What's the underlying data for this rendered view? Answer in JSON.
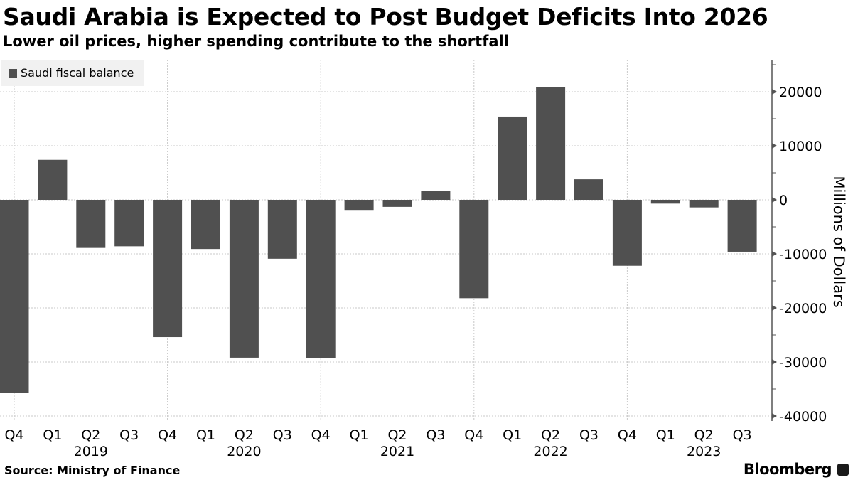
{
  "chart_data": {
    "type": "bar",
    "title": "Saudi Arabia is Expected to Post Budget Deficits Into 2026",
    "subtitle": "Lower oil prices, higher spending contribute to the shortfall",
    "xlabel": "",
    "ylabel": "Millions of Dollars",
    "ylim": [
      -40000,
      25000
    ],
    "yticks": [
      20000,
      10000,
      0,
      -10000,
      -20000,
      -30000,
      -40000
    ],
    "ytick_labels": [
      "20000",
      "10000",
      "0",
      "-10000",
      "-20000",
      "-30000",
      "-40000"
    ],
    "grid": true,
    "legend_position": "top-left",
    "categories": [
      "Q4",
      "Q1",
      "Q2",
      "Q3",
      "Q4",
      "Q1",
      "Q2",
      "Q3",
      "Q4",
      "Q1",
      "Q2",
      "Q3",
      "Q4",
      "Q1",
      "Q2",
      "Q3",
      "Q4",
      "Q1",
      "Q2",
      "Q3"
    ],
    "year_labels": [
      {
        "label": "2019",
        "index": 2
      },
      {
        "label": "2020",
        "index": 6
      },
      {
        "label": "2021",
        "index": 10
      },
      {
        "label": "2022",
        "index": 14
      },
      {
        "label": "2023",
        "index": 18
      }
    ],
    "series": [
      {
        "name": "Saudi fiscal balance",
        "color": "#505050",
        "values": [
          -35700,
          7400,
          -8900,
          -8600,
          -25400,
          -9100,
          -29200,
          -10900,
          -29300,
          -2000,
          -1300,
          1700,
          -18200,
          15400,
          20800,
          3800,
          -12200,
          -700,
          -1400,
          -9600
        ]
      }
    ]
  },
  "legend": {
    "label": "Saudi fiscal balance"
  },
  "footer": {
    "source": "Source: Ministry of Finance",
    "brand": "Bloomberg"
  }
}
